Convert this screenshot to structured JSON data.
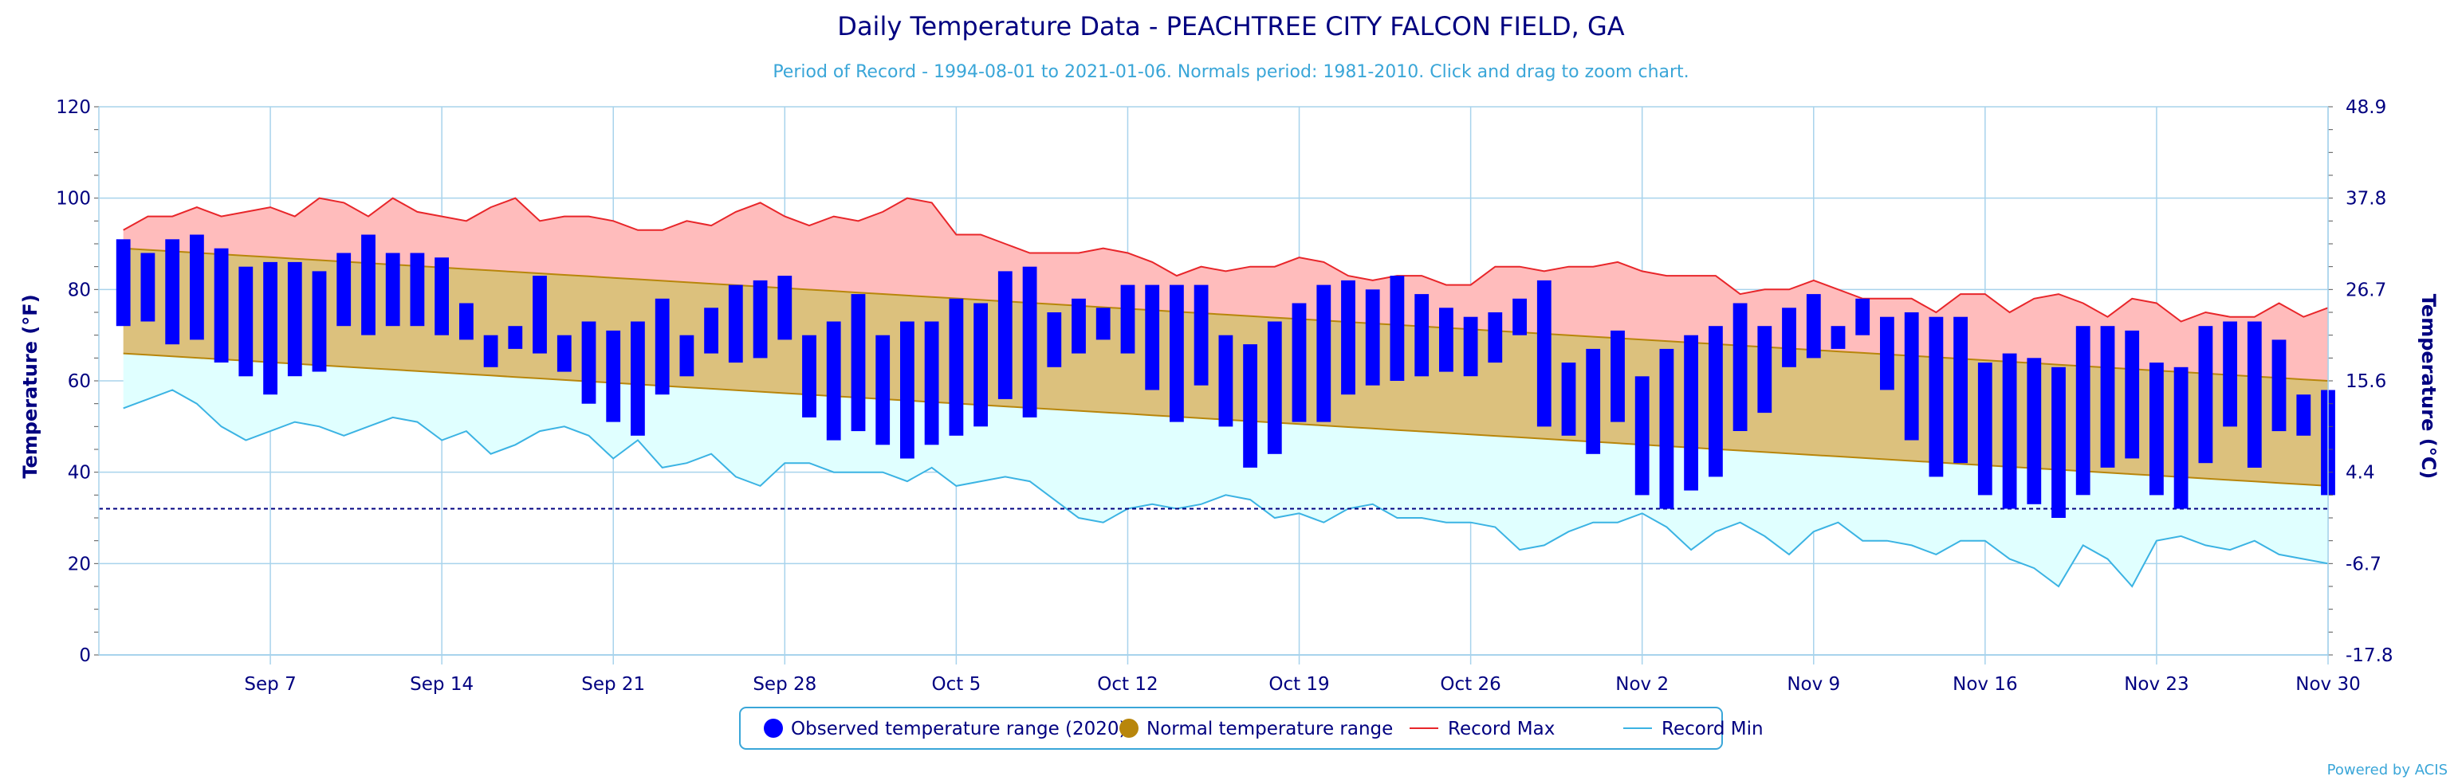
{
  "chart_data": {
    "type": "bar",
    "title": "Daily Temperature Data - PEACHTREE CITY FALCON FIELD, GA",
    "subtitle": "Period of Record - 1994-08-01 to 2021-01-06. Normals period: 1981-2010. Click and drag to zoom chart.",
    "ylabel_left": "Temperature (°F)",
    "ylabel_right": "Temperature (°C)",
    "ylim": [
      0,
      120
    ],
    "y_ticks_left": [
      0,
      20,
      40,
      60,
      80,
      100,
      120
    ],
    "y_ticks_right": [
      "-17.8",
      "-6.7",
      "4.4",
      "15.6",
      "26.7",
      "37.8",
      "48.9"
    ],
    "x_range": [
      "2020-08-31",
      "2020-11-30"
    ],
    "x_ticks": [
      {
        "day": 7,
        "label": "Sep 7"
      },
      {
        "day": 14,
        "label": "Sep 14"
      },
      {
        "day": 21,
        "label": "Sep 21"
      },
      {
        "day": 28,
        "label": "Sep 28"
      },
      {
        "day": 35,
        "label": "Oct 5"
      },
      {
        "day": 42,
        "label": "Oct 12"
      },
      {
        "day": 49,
        "label": "Oct 19"
      },
      {
        "day": 56,
        "label": "Oct 26"
      },
      {
        "day": 63,
        "label": "Nov 2"
      },
      {
        "day": 70,
        "label": "Nov 9"
      },
      {
        "day": 77,
        "label": "Nov 16"
      },
      {
        "day": 84,
        "label": "Nov 23"
      },
      {
        "day": 91,
        "label": "Nov 30"
      }
    ],
    "freezing_line": 32,
    "colors": {
      "observed": "#0000ff",
      "normal": "#b8860b",
      "normal_fill": "#dcc17d",
      "record_max": "#e8262a",
      "record_max_fill": "#ffbcbc",
      "record_min": "#3bb3e3",
      "record_min_fill": "#e0ffff",
      "axis_text": "#000080",
      "grid": "#a8d3ec"
    },
    "legend": [
      {
        "label": "Observed temperature range (2020)",
        "marker": "circle",
        "color": "#0000ff"
      },
      {
        "label": "Normal temperature range",
        "marker": "circle",
        "color": "#b8860b"
      },
      {
        "label": "Record Max",
        "marker": "line",
        "color": "#e8262a"
      },
      {
        "label": "Record Min",
        "marker": "line",
        "color": "#3bb3e3"
      }
    ],
    "legend_position": "bottom-center",
    "normal_high": {
      "start": 89,
      "end": 60
    },
    "normal_low": {
      "start": 66,
      "end": 37
    },
    "series": [
      {
        "name": "Observed temperature range (2020)",
        "days": [
          1,
          2,
          3,
          4,
          5,
          6,
          7,
          8,
          9,
          10,
          11,
          12,
          13,
          14,
          15,
          16,
          17,
          18,
          19,
          20,
          21,
          22,
          23,
          24,
          25,
          26,
          27,
          28,
          29,
          30,
          31,
          32,
          33,
          34,
          35,
          36,
          37,
          38,
          39,
          40,
          41,
          42,
          43,
          44,
          45,
          46,
          47,
          48,
          49,
          50,
          51,
          52,
          53,
          54,
          55,
          56,
          57,
          58,
          59,
          60,
          61,
          62,
          63,
          64,
          65,
          66,
          67,
          68,
          69,
          70,
          71,
          72,
          73,
          74,
          75,
          76,
          77,
          78,
          79,
          80,
          81,
          82,
          83,
          84,
          85,
          86,
          87,
          88,
          89,
          90,
          91
        ],
        "high": [
          91,
          88,
          91,
          92,
          89,
          85,
          86,
          86,
          84,
          88,
          92,
          88,
          88,
          87,
          77,
          70,
          72,
          83,
          70,
          73,
          71,
          73,
          78,
          70,
          76,
          81,
          82,
          83,
          70,
          73,
          79,
          70,
          73,
          73,
          78,
          77,
          84,
          85,
          75,
          78,
          76,
          81,
          81,
          81,
          81,
          70,
          68,
          73,
          77,
          81,
          82,
          80,
          83,
          79,
          76,
          74,
          75,
          78,
          82,
          64,
          67,
          71,
          61,
          67,
          70,
          72,
          77,
          72,
          76,
          79,
          72,
          78,
          74,
          75,
          74,
          74,
          64,
          66,
          65,
          63,
          72,
          72,
          71,
          64,
          63,
          72,
          73,
          73,
          69,
          57,
          58
        ],
        "low": [
          72,
          73,
          68,
          69,
          64,
          61,
          57,
          61,
          62,
          72,
          70,
          72,
          72,
          70,
          69,
          63,
          67,
          66,
          62,
          55,
          51,
          48,
          57,
          61,
          66,
          64,
          65,
          69,
          52,
          47,
          49,
          46,
          43,
          46,
          48,
          50,
          56,
          52,
          63,
          66,
          69,
          66,
          58,
          51,
          59,
          50,
          41,
          44,
          51,
          51,
          57,
          59,
          60,
          61,
          62,
          61,
          64,
          70,
          50,
          48,
          44,
          51,
          35,
          32,
          36,
          39,
          49,
          53,
          63,
          65,
          67,
          70,
          58,
          47,
          39,
          42,
          35,
          32,
          33,
          30,
          35,
          41,
          43,
          35,
          32,
          42,
          50,
          41,
          49,
          48,
          35
        ]
      },
      {
        "name": "Record Max",
        "days": [
          1,
          2,
          3,
          4,
          5,
          6,
          7,
          8,
          9,
          10,
          11,
          12,
          13,
          14,
          15,
          16,
          17,
          18,
          19,
          20,
          21,
          22,
          23,
          24,
          25,
          26,
          27,
          28,
          29,
          30,
          31,
          32,
          33,
          34,
          35,
          36,
          37,
          38,
          39,
          40,
          41,
          42,
          43,
          44,
          45,
          46,
          47,
          48,
          49,
          50,
          51,
          52,
          53,
          54,
          55,
          56,
          57,
          58,
          59,
          60,
          61,
          62,
          63,
          64,
          65,
          66,
          67,
          68,
          69,
          70,
          71,
          72,
          73,
          74,
          75,
          76,
          77,
          78,
          79,
          80,
          81,
          82,
          83,
          84,
          85,
          86,
          87,
          88,
          89,
          90,
          91
        ],
        "values": [
          93,
          96,
          96,
          98,
          96,
          97,
          98,
          96,
          100,
          99,
          96,
          100,
          97,
          96,
          95,
          98,
          100,
          95,
          96,
          96,
          95,
          93,
          93,
          95,
          94,
          97,
          99,
          96,
          94,
          96,
          95,
          97,
          100,
          99,
          92,
          92,
          90,
          88,
          88,
          88,
          89,
          88,
          86,
          83,
          85,
          84,
          85,
          85,
          87,
          86,
          83,
          82,
          83,
          83,
          81,
          81,
          85,
          85,
          84,
          85,
          85,
          86,
          84,
          83,
          83,
          83,
          79,
          80,
          80,
          82,
          80,
          78,
          78,
          78,
          75,
          79,
          79,
          75,
          78,
          79,
          77,
          74,
          78,
          77,
          73,
          75,
          74,
          74,
          77,
          74,
          76
        ]
      },
      {
        "name": "Record Min",
        "days": [
          1,
          2,
          3,
          4,
          5,
          6,
          7,
          8,
          9,
          10,
          11,
          12,
          13,
          14,
          15,
          16,
          17,
          18,
          19,
          20,
          21,
          22,
          23,
          24,
          25,
          26,
          27,
          28,
          29,
          30,
          31,
          32,
          33,
          34,
          35,
          36,
          37,
          38,
          39,
          40,
          41,
          42,
          43,
          44,
          45,
          46,
          47,
          48,
          49,
          50,
          51,
          52,
          53,
          54,
          55,
          56,
          57,
          58,
          59,
          60,
          61,
          62,
          63,
          64,
          65,
          66,
          67,
          68,
          69,
          70,
          71,
          72,
          73,
          74,
          75,
          76,
          77,
          78,
          79,
          80,
          81,
          82,
          83,
          84,
          85,
          86,
          87,
          88,
          89,
          90,
          91
        ],
        "values": [
          54,
          56,
          58,
          55,
          50,
          47,
          49,
          51,
          50,
          48,
          50,
          52,
          51,
          47,
          49,
          44,
          46,
          49,
          50,
          48,
          43,
          47,
          41,
          42,
          44,
          39,
          37,
          42,
          42,
          40,
          40,
          40,
          38,
          41,
          37,
          38,
          39,
          38,
          34,
          30,
          29,
          32,
          33,
          32,
          33,
          35,
          34,
          30,
          31,
          29,
          32,
          33,
          30,
          30,
          29,
          29,
          28,
          23,
          24,
          27,
          29,
          29,
          31,
          28,
          23,
          27,
          29,
          26,
          22,
          27,
          29,
          25,
          25,
          24,
          22,
          25,
          25,
          21,
          19,
          15,
          24,
          21,
          15,
          25,
          26,
          24,
          23,
          25,
          22,
          21,
          20
        ]
      }
    ],
    "credit": "Powered by ACIS"
  }
}
